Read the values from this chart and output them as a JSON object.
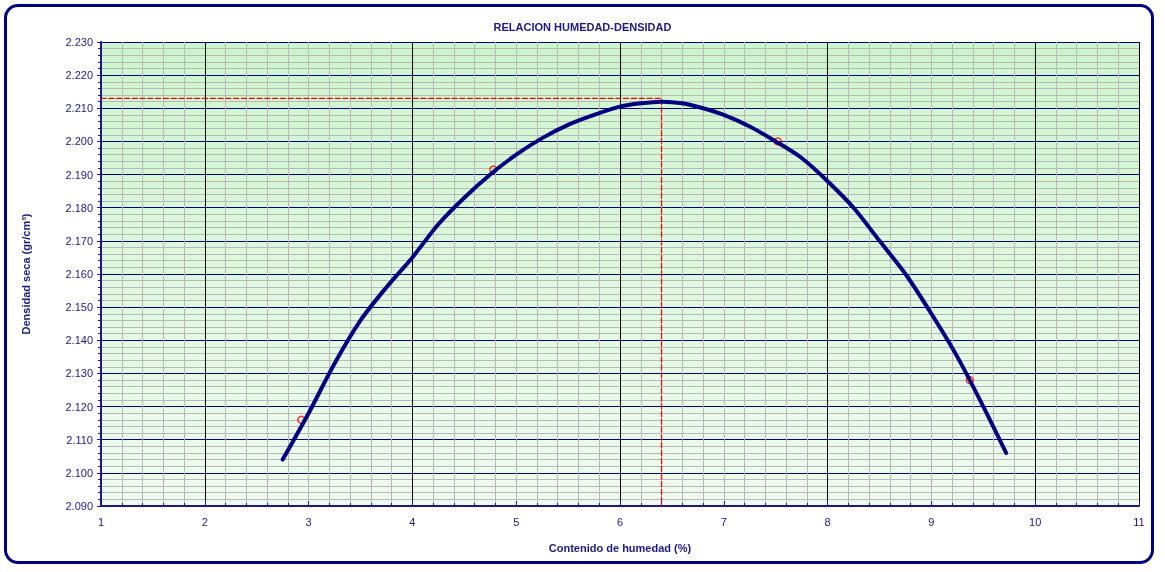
{
  "chart_data": {
    "type": "line",
    "title": "RELACION HUMEDAD-DENSIDAD",
    "xlabel": "Contenido de humedad (%)",
    "ylabel": "Densidad seca (gr/cm³)",
    "xlim": [
      1,
      11
    ],
    "xticks": [
      1,
      2,
      3,
      4,
      5,
      6,
      7,
      8,
      9,
      10,
      11
    ],
    "ylim": [
      2.09,
      2.23
    ],
    "yticks": [
      {
        "value": 2.09,
        "label": "2.090"
      },
      {
        "value": 2.1,
        "label": "2.100"
      },
      {
        "value": 2.11,
        "label": "2.110"
      },
      {
        "value": 2.12,
        "label": "2.120"
      },
      {
        "value": 2.13,
        "label": "2.130"
      },
      {
        "value": 2.14,
        "label": "2.140"
      },
      {
        "value": 2.15,
        "label": "2.150"
      },
      {
        "value": 2.16,
        "label": "2.160"
      },
      {
        "value": 2.17,
        "label": "2.170"
      },
      {
        "value": 2.18,
        "label": "2.180"
      },
      {
        "value": 2.19,
        "label": "2.190"
      },
      {
        "value": 2.2,
        "label": "2.200"
      },
      {
        "value": 2.21,
        "label": "2.210"
      },
      {
        "value": 2.22,
        "label": "2.220"
      },
      {
        "value": 2.23,
        "label": "2.230"
      }
    ],
    "grid": true,
    "series": [
      {
        "color": "#000080",
        "marker": "none",
        "line_style": "solid",
        "x": [
          2.75,
          3.0,
          3.25,
          3.5,
          3.75,
          4.0,
          4.25,
          4.5,
          4.75,
          5.0,
          5.25,
          5.5,
          5.75,
          6.0,
          6.2,
          6.4,
          6.6,
          6.8,
          7.0,
          7.25,
          7.5,
          7.75,
          8.0,
          8.25,
          8.5,
          8.75,
          9.0,
          9.25,
          9.5,
          9.72
        ],
        "values": [
          2.104,
          2.118,
          2.133,
          2.146,
          2.156,
          2.165,
          2.175,
          2.183,
          2.19,
          2.196,
          2.201,
          2.205,
          2.208,
          2.2105,
          2.2115,
          2.212,
          2.2115,
          2.21,
          2.208,
          2.2045,
          2.2,
          2.195,
          2.188,
          2.18,
          2.17,
          2.16,
          2.148,
          2.135,
          2.12,
          2.106
        ]
      },
      {
        "type": "scatter",
        "color": "#ff0000",
        "marker": "circle",
        "x": [
          2.93,
          4.78,
          7.52,
          9.37
        ],
        "values": [
          2.116,
          2.1915,
          2.2,
          2.128
        ]
      },
      {
        "type": "line",
        "color": "#ff0000",
        "marker": "none",
        "line_style": "dashed",
        "x": [
          1,
          6.4,
          6.4
        ],
        "values": [
          2.213,
          2.213,
          2.09
        ]
      }
    ]
  }
}
